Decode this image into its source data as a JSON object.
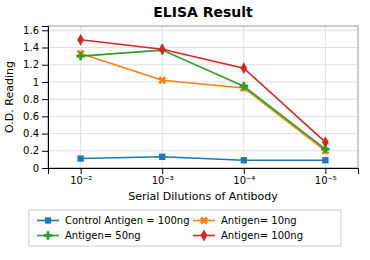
{
  "chart_data": {
    "type": "line",
    "title": "ELISA Result",
    "x_label": "Serial Dilutions  of Antibody",
    "y_label": "O.D. Reading",
    "categories": [
      "10⁻²",
      "10⁻³",
      "10⁻⁴",
      "10⁻⁵"
    ],
    "series": [
      {
        "name": "Control Antigen = 100ng",
        "marker": "square",
        "values": [
          0.11,
          0.13,
          0.09,
          0.09
        ]
      },
      {
        "name": "Antigen= 10ng",
        "marker": "x",
        "values": [
          1.33,
          1.02,
          0.93,
          0.2
        ]
      },
      {
        "name": "Antigen= 50ng",
        "marker": "plus",
        "values": [
          1.3,
          1.37,
          0.95,
          0.22
        ]
      },
      {
        "name": "Antigen= 100ng",
        "marker": "diamond",
        "values": [
          1.49,
          1.38,
          1.16,
          0.3
        ]
      }
    ],
    "ylim": [
      0,
      1.65
    ],
    "yticks": [
      0,
      0.2,
      0.4,
      0.6,
      0.8,
      1,
      1.2,
      1.4,
      1.6
    ],
    "grid": true,
    "legend": "bottom"
  }
}
